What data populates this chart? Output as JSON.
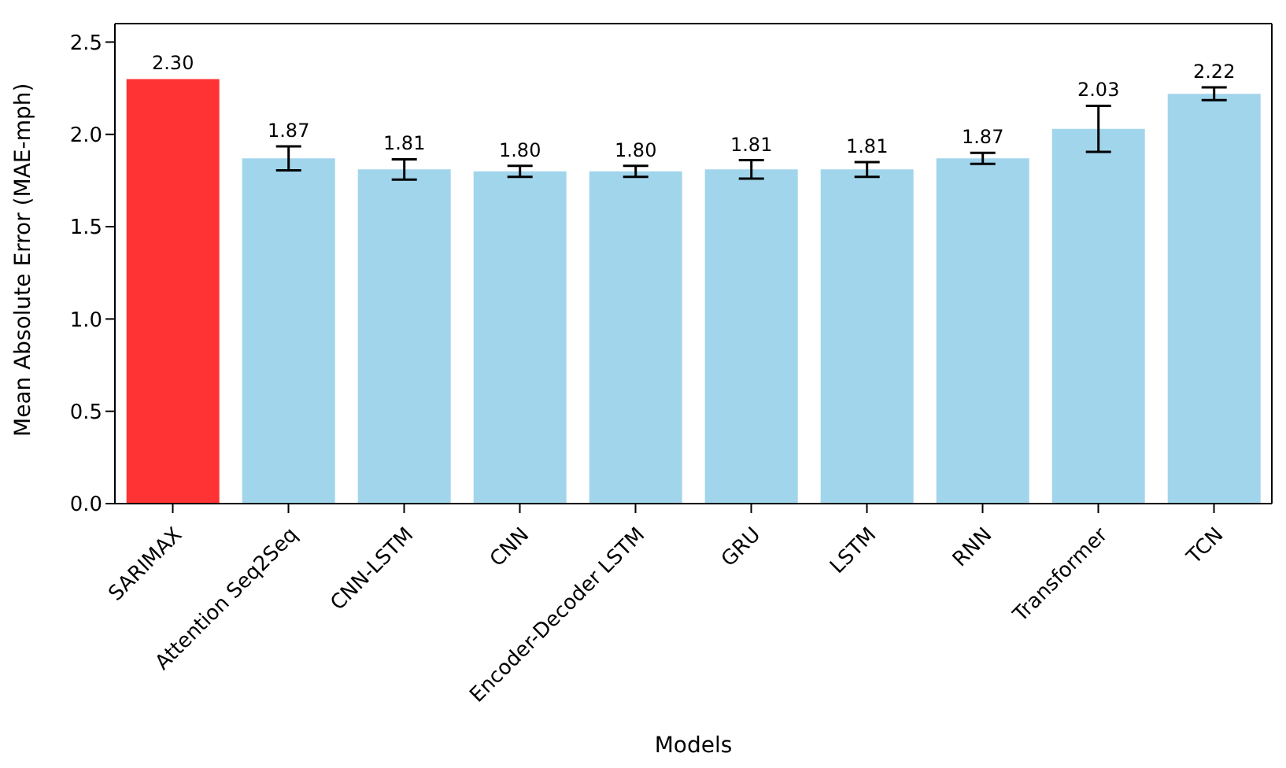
{
  "chart_data": {
    "type": "bar",
    "xlabel": "Models",
    "ylabel": "Mean Absolute Error (MAE-mph)",
    "categories": [
      "SARIMAX",
      "Attention Seq2Seq",
      "CNN-LSTM",
      "CNN",
      "Encoder-Decoder LSTM",
      "GRU",
      "LSTM",
      "RNN",
      "Transformer",
      "TCN"
    ],
    "values": [
      2.3,
      1.87,
      1.81,
      1.8,
      1.8,
      1.81,
      1.81,
      1.87,
      2.03,
      2.22
    ],
    "errors": [
      0,
      0.065,
      0.055,
      0.03,
      0.03,
      0.05,
      0.04,
      0.03,
      0.125,
      0.035
    ],
    "colors": [
      "#ff3333",
      "#a1d5ec",
      "#a1d5ec",
      "#a1d5ec",
      "#a1d5ec",
      "#a1d5ec",
      "#a1d5ec",
      "#a1d5ec",
      "#a1d5ec",
      "#a1d5ec"
    ],
    "value_labels": [
      "2.30",
      "1.87",
      "1.81",
      "1.80",
      "1.80",
      "1.81",
      "1.81",
      "1.87",
      "2.03",
      "2.22"
    ],
    "ylim": [
      0,
      2.6
    ],
    "yticks": [
      {
        "value": 0,
        "label": "0.0"
      },
      0.5,
      {
        "value": 1,
        "label": "1.0"
      },
      1.5,
      {
        "value": 2,
        "label": "2.0"
      },
      2.5
    ],
    "grid": false,
    "legend": false
  }
}
